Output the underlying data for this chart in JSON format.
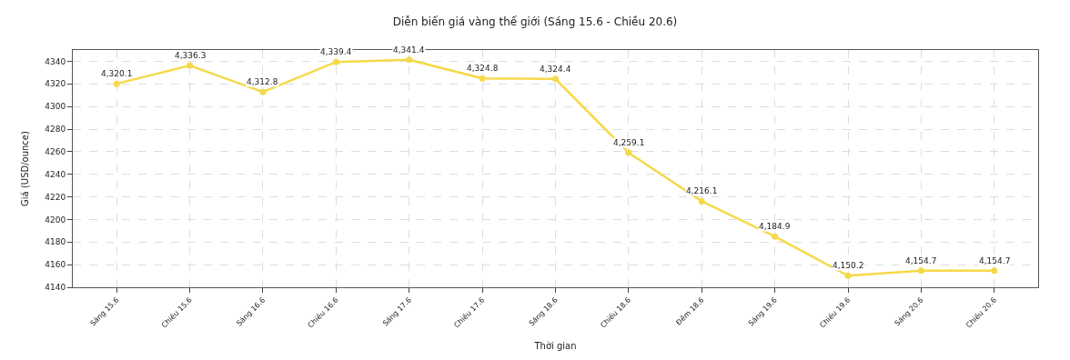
{
  "chart_data": {
    "type": "line",
    "title": "Diễn biến giá vàng thế giới (Sáng 15.6 - Chiều 20.6)",
    "xlabel": "Thời gian",
    "ylabel": "Giá (USD/ounce)",
    "categories": [
      "Sáng 15.6",
      "Chiều 15.6",
      "Sáng 16.6",
      "Chiều 16.6",
      "Sáng 17.6",
      "Chiều 17.6",
      "Sáng 18.6",
      "Chiều 18.6",
      "Đêm 18.6",
      "Sáng 19.6",
      "Chiều 19.6",
      "Sáng 20.6",
      "Chiều 20.6"
    ],
    "series": [
      {
        "color": "#f5d949",
        "values": [
          4320.1,
          4336.3,
          4312.8,
          4339.4,
          4341.4,
          4324.8,
          4324.4,
          4259.1,
          4216.1,
          4184.9,
          4150.2,
          4154.7,
          4154.7
        ],
        "value_labels": [
          "4,320.1",
          "4,336.3",
          "4,312.8",
          "4,339.4",
          "4,341.4",
          "4,324.8",
          "4,324.4",
          "4,259.1",
          "4,216.1",
          "4,184.9",
          "4,150.2",
          "4,154.7",
          "4,154.7"
        ]
      }
    ],
    "ylim": [
      4140,
      4350
    ],
    "yticks": [
      4140,
      4160,
      4180,
      4200,
      4220,
      4240,
      4260,
      4280,
      4300,
      4320,
      4340
    ],
    "grid": true,
    "legend": false,
    "marker": "circle",
    "line_style": "solid"
  }
}
